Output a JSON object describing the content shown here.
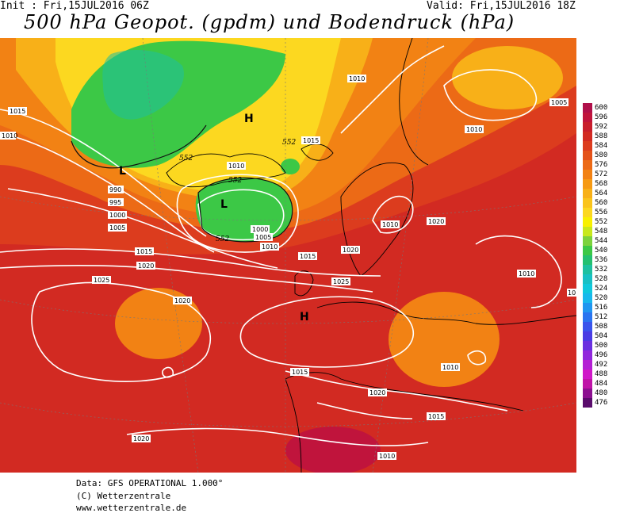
{
  "header": {
    "init": "Init : Fri,15JUL2016 06Z",
    "valid": "Valid: Fri,15JUL2016 18Z",
    "title": "500 hPa Geopot. (gpdm) und Bodendruck (hPa)"
  },
  "footer": {
    "data_line": "Data: GFS OPERATIONAL 1.000°",
    "copyright_line": "(C) Wetterzentrale",
    "url_line": "www.wetterzentrale.de"
  },
  "legend": [
    {
      "value": "600",
      "color": "#b0104a"
    },
    {
      "value": "596",
      "color": "#c0143c"
    },
    {
      "value": "592",
      "color": "#c81e2c"
    },
    {
      "value": "588",
      "color": "#d22a22"
    },
    {
      "value": "584",
      "color": "#dc3c1e"
    },
    {
      "value": "580",
      "color": "#e4521a"
    },
    {
      "value": "576",
      "color": "#ec6a16"
    },
    {
      "value": "572",
      "color": "#f28214"
    },
    {
      "value": "568",
      "color": "#f69a14"
    },
    {
      "value": "564",
      "color": "#f8b018"
    },
    {
      "value": "560",
      "color": "#fac41c"
    },
    {
      "value": "556",
      "color": "#fcd820"
    },
    {
      "value": "552",
      "color": "#f8f000"
    },
    {
      "value": "548",
      "color": "#c8e81c"
    },
    {
      "value": "544",
      "color": "#7cd23c"
    },
    {
      "value": "540",
      "color": "#3cc846"
    },
    {
      "value": "536",
      "color": "#24c070"
    },
    {
      "value": "532",
      "color": "#1ec0a0"
    },
    {
      "value": "528",
      "color": "#18c0c4"
    },
    {
      "value": "524",
      "color": "#10c8dc"
    },
    {
      "value": "520",
      "color": "#18b8ec"
    },
    {
      "value": "516",
      "color": "#2096f0"
    },
    {
      "value": "512",
      "color": "#2a74f0"
    },
    {
      "value": "508",
      "color": "#3a54ec"
    },
    {
      "value": "504",
      "color": "#4a3ce4"
    },
    {
      "value": "500",
      "color": "#6a30e0"
    },
    {
      "value": "496",
      "color": "#9028dc"
    },
    {
      "value": "492",
      "color": "#b420d4"
    },
    {
      "value": "488",
      "color": "#d018c8"
    },
    {
      "value": "484",
      "color": "#c014a8"
    },
    {
      "value": "480",
      "color": "#8c1090"
    },
    {
      "value": "476",
      "color": "#5a0c6c"
    }
  ],
  "pressure_labels": [
    {
      "text": "1015"
    },
    {
      "text": "1010"
    },
    {
      "text": "990"
    },
    {
      "text": "995"
    },
    {
      "text": "1000"
    },
    {
      "text": "1005"
    },
    {
      "text": "1015"
    },
    {
      "text": "1020"
    },
    {
      "text": "1025"
    },
    {
      "text": "1020"
    },
    {
      "text": "1010"
    },
    {
      "text": "1005"
    },
    {
      "text": "1000"
    },
    {
      "text": "1005"
    },
    {
      "text": "1010"
    },
    {
      "text": "1010"
    },
    {
      "text": "1005"
    },
    {
      "text": "1010"
    },
    {
      "text": "1015"
    },
    {
      "text": "1010"
    },
    {
      "text": "1015"
    },
    {
      "text": "1020"
    },
    {
      "text": "1025"
    },
    {
      "text": "1010"
    },
    {
      "text": "1020"
    },
    {
      "text": "1010"
    },
    {
      "text": "1015"
    },
    {
      "text": "1020"
    },
    {
      "text": "1015"
    },
    {
      "text": "1010"
    },
    {
      "text": "1020"
    },
    {
      "text": "1010"
    },
    {
      "text": "1015"
    }
  ],
  "geopot_labels": [
    {
      "text": "552"
    },
    {
      "text": "552"
    },
    {
      "text": "552"
    },
    {
      "text": "552"
    }
  ],
  "pressure_centers": [
    {
      "text": "L"
    },
    {
      "text": "L"
    },
    {
      "text": "H"
    },
    {
      "text": "H"
    }
  ]
}
